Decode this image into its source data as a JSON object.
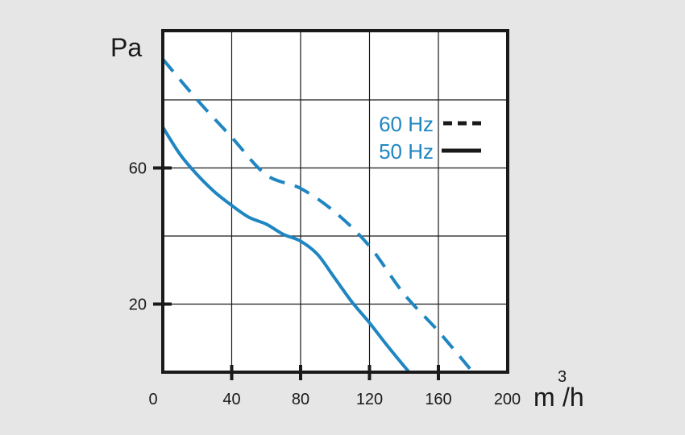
{
  "chart_data": {
    "type": "line",
    "ylabel": "Pa",
    "xlabel_unit": {
      "base": "m",
      "superscript": "3",
      "suffix": "/h"
    },
    "xlim": [
      0,
      200
    ],
    "ylim": [
      0,
      120
    ],
    "xticks": [
      {
        "value": 0,
        "label": "0"
      },
      {
        "value": 40,
        "label": "40"
      },
      {
        "value": 80,
        "label": "80"
      },
      {
        "value": 120,
        "label": "120"
      },
      {
        "value": 160,
        "label": "160"
      },
      {
        "value": 200,
        "label": "200"
      }
    ],
    "yticks": [
      {
        "value": 20,
        "label": "20"
      },
      {
        "value": 60,
        "label": "60"
      }
    ],
    "ygrid": [
      20,
      40,
      60,
      80,
      100
    ],
    "grid": true,
    "legend_position": "top-right",
    "series_color": "#1f86c2",
    "series": [
      {
        "name": "60 Hz",
        "style": "dashed",
        "x": [
          0,
          20,
          40,
          60,
          80,
          100,
          120,
          140,
          160,
          180
        ],
        "y": [
          92,
          80,
          69,
          58,
          54,
          47,
          37,
          23,
          12,
          0
        ]
      },
      {
        "name": "50 Hz",
        "style": "solid",
        "x": [
          0,
          10,
          20,
          30,
          40,
          50,
          60,
          70,
          80,
          90,
          100,
          110,
          120,
          130,
          143
        ],
        "y": [
          72,
          64,
          58,
          53,
          49,
          45.5,
          43.5,
          40.5,
          38.5,
          34.5,
          27.5,
          20.5,
          14.5,
          8,
          0
        ]
      }
    ]
  }
}
